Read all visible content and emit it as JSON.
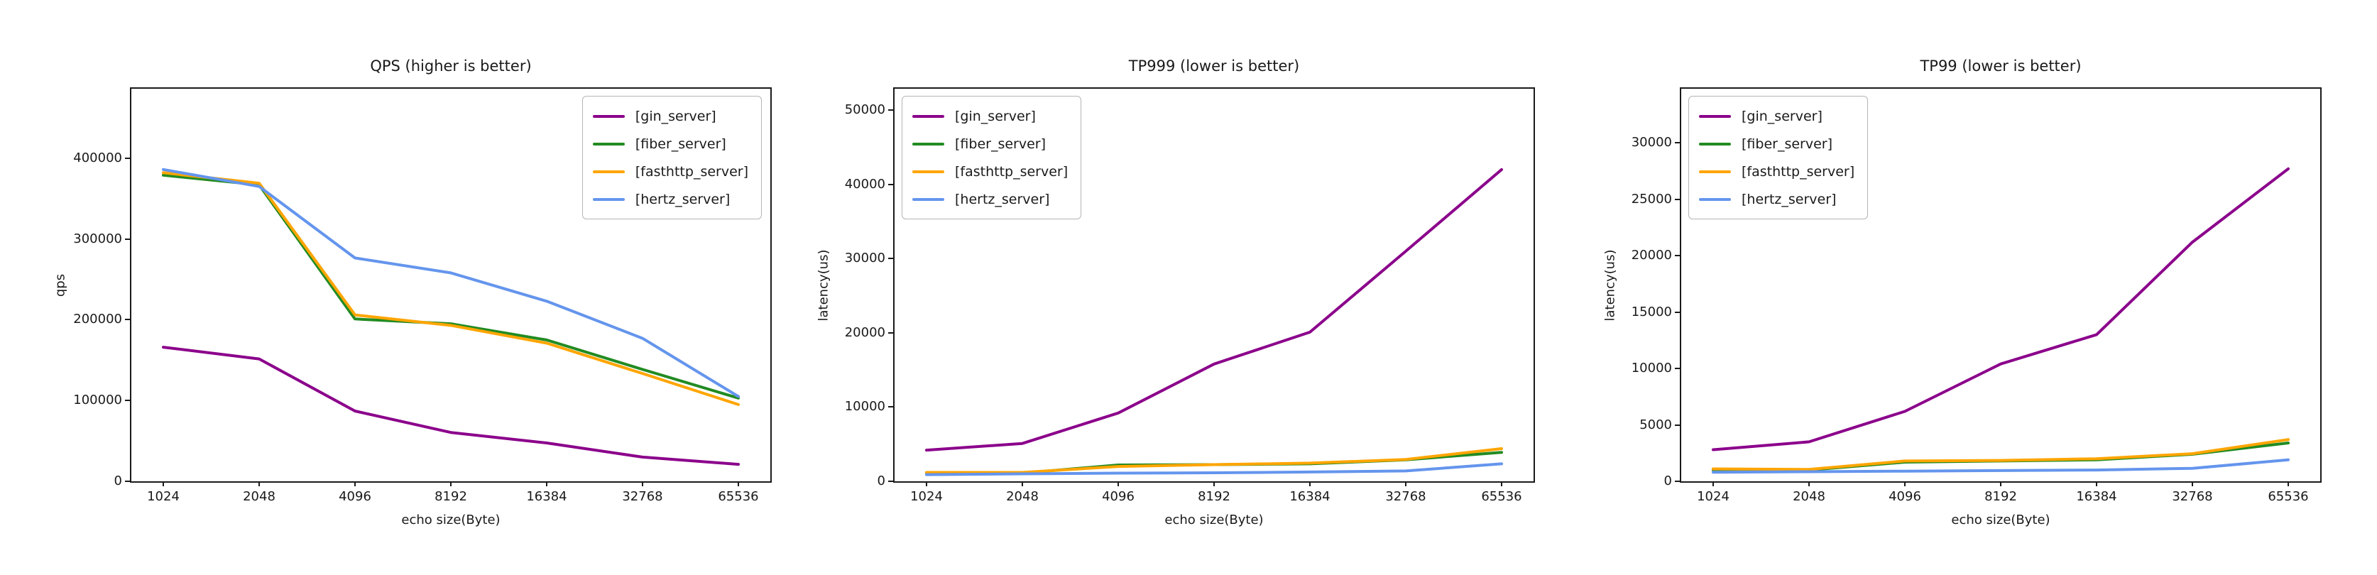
{
  "figure": {
    "background_color": "#ffffff",
    "text_color": "#1a1a1a"
  },
  "series_colors": {
    "gin_server": "#8b008b",
    "fiber_server": "#228b22",
    "fasthttp_server": "#ffa500",
    "hertz_server": "#6495ed"
  },
  "chart_data": [
    {
      "type": "line",
      "title": "QPS (higher is better)",
      "xlabel": "echo size(Byte)",
      "ylabel": "qps",
      "x": [
        1024,
        2048,
        4096,
        8192,
        16384,
        32768,
        65536
      ],
      "x_tick_labels": [
        "1024",
        "2048",
        "4096",
        "8192",
        "16384",
        "32768",
        "65536"
      ],
      "yticks": [
        0,
        100000,
        200000,
        300000,
        400000
      ],
      "ytick_labels": [
        "0",
        "100000",
        "200000",
        "300000",
        "400000"
      ],
      "ylim": [
        0,
        486000
      ],
      "grid": false,
      "legend_position": "top-right",
      "series": [
        {
          "name": "[gin_server]",
          "color": "#8b008b",
          "values": [
            166000,
            151500,
            87000,
            60500,
            47500,
            30000,
            21000
          ]
        },
        {
          "name": "[fiber_server]",
          "color": "#228b22",
          "values": [
            379000,
            367000,
            201000,
            195000,
            175000,
            138500,
            103000
          ]
        },
        {
          "name": "[fasthttp_server]",
          "color": "#ffa500",
          "values": [
            382000,
            369000,
            206000,
            193000,
            171000,
            133500,
            95000
          ]
        },
        {
          "name": "[hertz_server]",
          "color": "#6495ed",
          "values": [
            386000,
            365000,
            276500,
            258000,
            223000,
            177000,
            105000
          ]
        }
      ]
    },
    {
      "type": "line",
      "title": "TP999 (lower is better)",
      "xlabel": "echo size(Byte)",
      "ylabel": "latency(us)",
      "x": [
        1024,
        2048,
        4096,
        8192,
        16384,
        32768,
        65536
      ],
      "x_tick_labels": [
        "1024",
        "2048",
        "4096",
        "8192",
        "16384",
        "32768",
        "65536"
      ],
      "yticks": [
        0,
        10000,
        20000,
        30000,
        40000,
        50000
      ],
      "ytick_labels": [
        "0",
        "10000",
        "20000",
        "30000",
        "40000",
        "50000"
      ],
      "ylim": [
        0,
        52900
      ],
      "grid": false,
      "legend_position": "top-left",
      "series": [
        {
          "name": "[gin_server]",
          "color": "#8b008b",
          "values": [
            4200,
            5100,
            9200,
            15800,
            20100,
            31000,
            42000
          ]
        },
        {
          "name": "[fiber_server]",
          "color": "#228b22",
          "values": [
            1100,
            1100,
            2200,
            2250,
            2350,
            2900,
            3900
          ]
        },
        {
          "name": "[fasthttp_server]",
          "color": "#ffa500",
          "values": [
            1200,
            1200,
            2000,
            2250,
            2450,
            2950,
            4400
          ]
        },
        {
          "name": "[hertz_server]",
          "color": "#6495ed",
          "values": [
            900,
            1000,
            1100,
            1150,
            1250,
            1400,
            2350
          ]
        }
      ]
    },
    {
      "type": "line",
      "title": "TP99 (lower is better)",
      "xlabel": "echo size(Byte)",
      "ylabel": "latency(us)",
      "x": [
        1024,
        2048,
        4096,
        8192,
        16384,
        32768,
        65536
      ],
      "x_tick_labels": [
        "1024",
        "2048",
        "4096",
        "8192",
        "16384",
        "32768",
        "65536"
      ],
      "yticks": [
        0,
        5000,
        10000,
        15000,
        20000,
        25000,
        30000
      ],
      "ytick_labels": [
        "0",
        "5000",
        "10000",
        "15000",
        "20000",
        "25000",
        "30000"
      ],
      "ylim": [
        0,
        34800
      ],
      "grid": false,
      "legend_position": "top-left",
      "series": [
        {
          "name": "[gin_server]",
          "color": "#8b008b",
          "values": [
            2800,
            3500,
            6200,
            10400,
            13000,
            21200,
            27700
          ]
        },
        {
          "name": "[fiber_server]",
          "color": "#228b22",
          "values": [
            1000,
            1000,
            1700,
            1800,
            1900,
            2400,
            3400
          ]
        },
        {
          "name": "[fasthttp_server]",
          "color": "#ffa500",
          "values": [
            1100,
            1050,
            1800,
            1850,
            2000,
            2450,
            3700
          ]
        },
        {
          "name": "[hertz_server]",
          "color": "#6495ed",
          "values": [
            800,
            850,
            900,
            950,
            1000,
            1150,
            1900
          ]
        }
      ]
    }
  ]
}
